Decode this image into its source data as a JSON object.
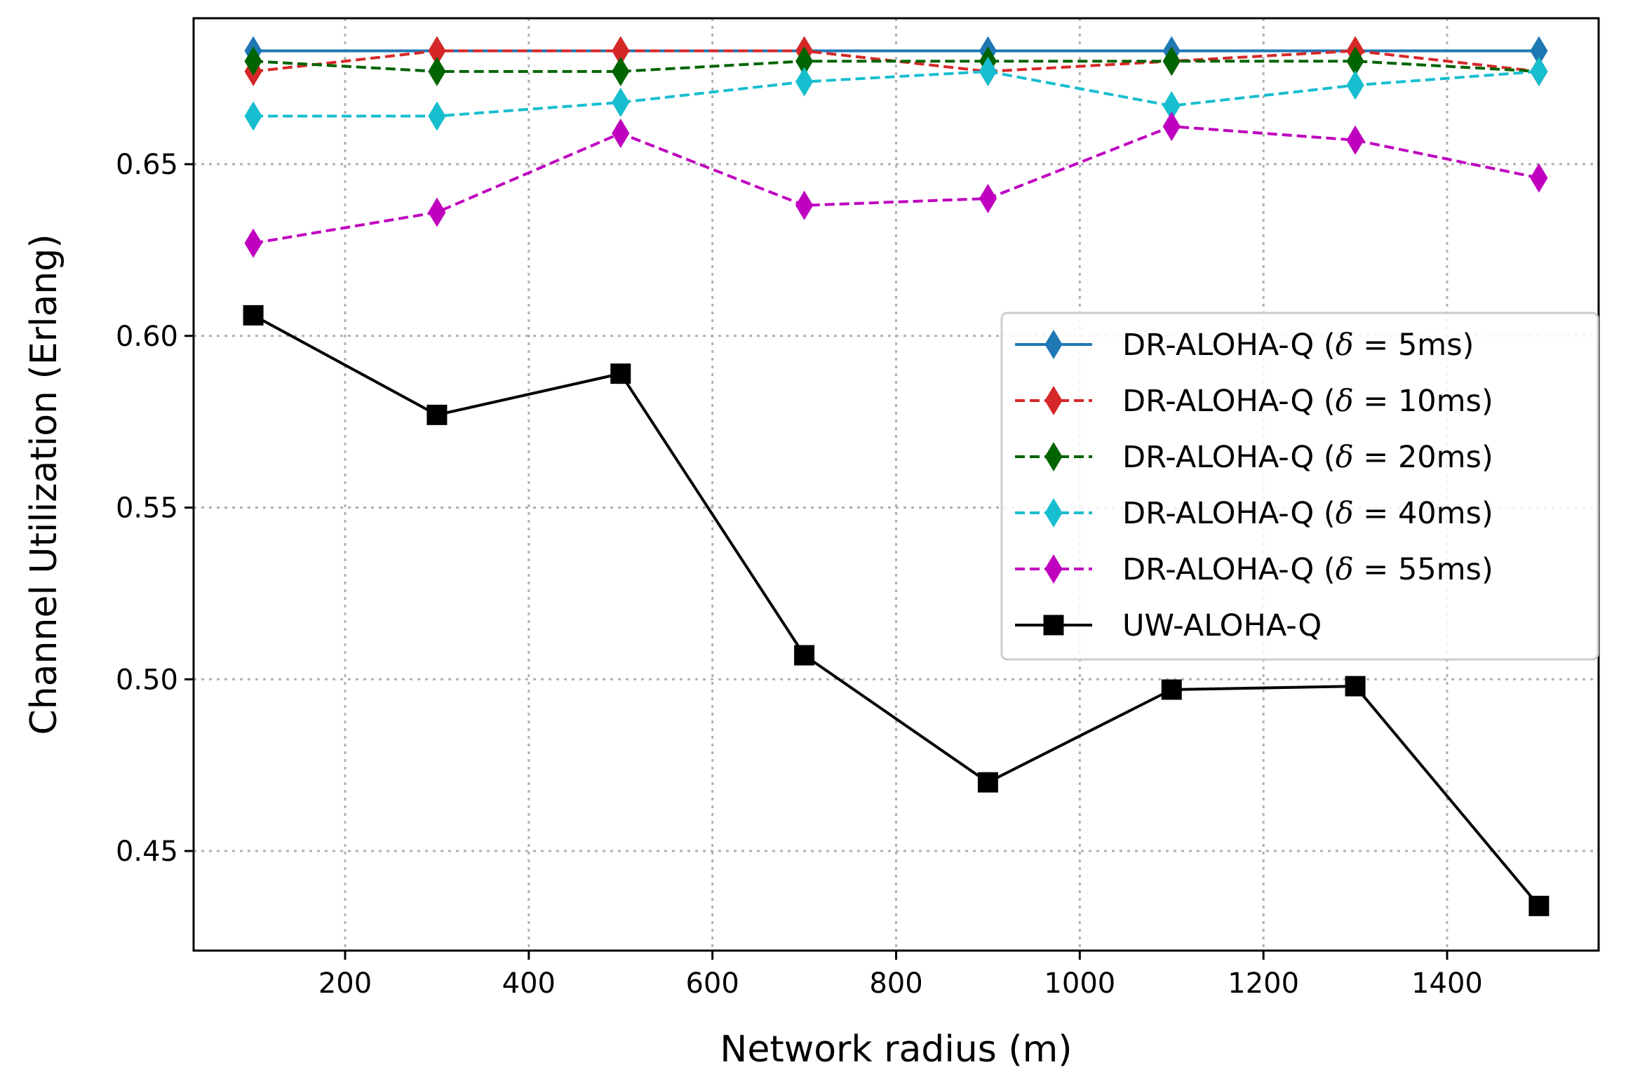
{
  "chart_data": {
    "type": "line",
    "title": "",
    "xlabel": "Network radius (m)",
    "ylabel": "Channel Utilization (Erlang)",
    "xlim": [
      35,
      1565
    ],
    "ylim": [
      0.421,
      0.6925
    ],
    "xticks": [
      200,
      400,
      600,
      800,
      1000,
      1200,
      1400
    ],
    "yticks": [
      0.45,
      0.5,
      0.55,
      0.6,
      0.65
    ],
    "ytick_labels": [
      "0.45",
      "0.50",
      "0.55",
      "0.60",
      "0.65"
    ],
    "grid": true,
    "legend_position": "center-right",
    "x": [
      100,
      300,
      500,
      700,
      900,
      1100,
      1300,
      1500
    ],
    "series": [
      {
        "name": "DR-ALOHA-Q (δ = 5ms)",
        "label_prefix": "DR-ALOHA-Q (",
        "label_symbol": "δ",
        "label_suffix": " = 5ms)",
        "color": "#1f77b4",
        "dash": "solid",
        "marker": "diamond",
        "values": [
          0.683,
          0.683,
          0.683,
          0.683,
          0.683,
          0.683,
          0.683,
          0.683
        ]
      },
      {
        "name": "DR-ALOHA-Q (δ = 10ms)",
        "label_prefix": "DR-ALOHA-Q (",
        "label_symbol": "δ",
        "label_suffix": " = 10ms)",
        "color": "#d62728",
        "dash": "dashed",
        "marker": "diamond",
        "values": [
          0.677,
          0.683,
          0.683,
          0.683,
          0.677,
          0.68,
          0.683,
          0.677
        ]
      },
      {
        "name": "DR-ALOHA-Q (δ = 20ms)",
        "label_prefix": "DR-ALOHA-Q (",
        "label_symbol": "δ",
        "label_suffix": " = 20ms)",
        "color": "#006400",
        "dash": "dashed",
        "marker": "diamond",
        "values": [
          0.68,
          0.677,
          0.677,
          0.68,
          0.68,
          0.68,
          0.68,
          0.677
        ]
      },
      {
        "name": "DR-ALOHA-Q (δ = 40ms)",
        "label_prefix": "DR-ALOHA-Q (",
        "label_symbol": "δ",
        "label_suffix": " = 40ms)",
        "color": "#17becf",
        "dash": "dashed",
        "marker": "diamond",
        "values": [
          0.664,
          0.664,
          0.668,
          0.674,
          0.677,
          0.667,
          0.673,
          0.677
        ]
      },
      {
        "name": "DR-ALOHA-Q (δ = 55ms)",
        "label_prefix": "DR-ALOHA-Q (",
        "label_symbol": "δ",
        "label_suffix": " = 55ms)",
        "color": "#bf00bf",
        "dash": "dashed",
        "marker": "diamond",
        "values": [
          0.627,
          0.636,
          0.659,
          0.638,
          0.64,
          0.661,
          0.657,
          0.646
        ]
      },
      {
        "name": "UW-ALOHA-Q",
        "label_prefix": "UW-ALOHA-Q",
        "label_symbol": "",
        "label_suffix": "",
        "color": "#000000",
        "dash": "solid",
        "marker": "square",
        "values": [
          0.606,
          0.577,
          0.589,
          0.507,
          0.47,
          0.497,
          0.498,
          0.434
        ]
      }
    ]
  }
}
